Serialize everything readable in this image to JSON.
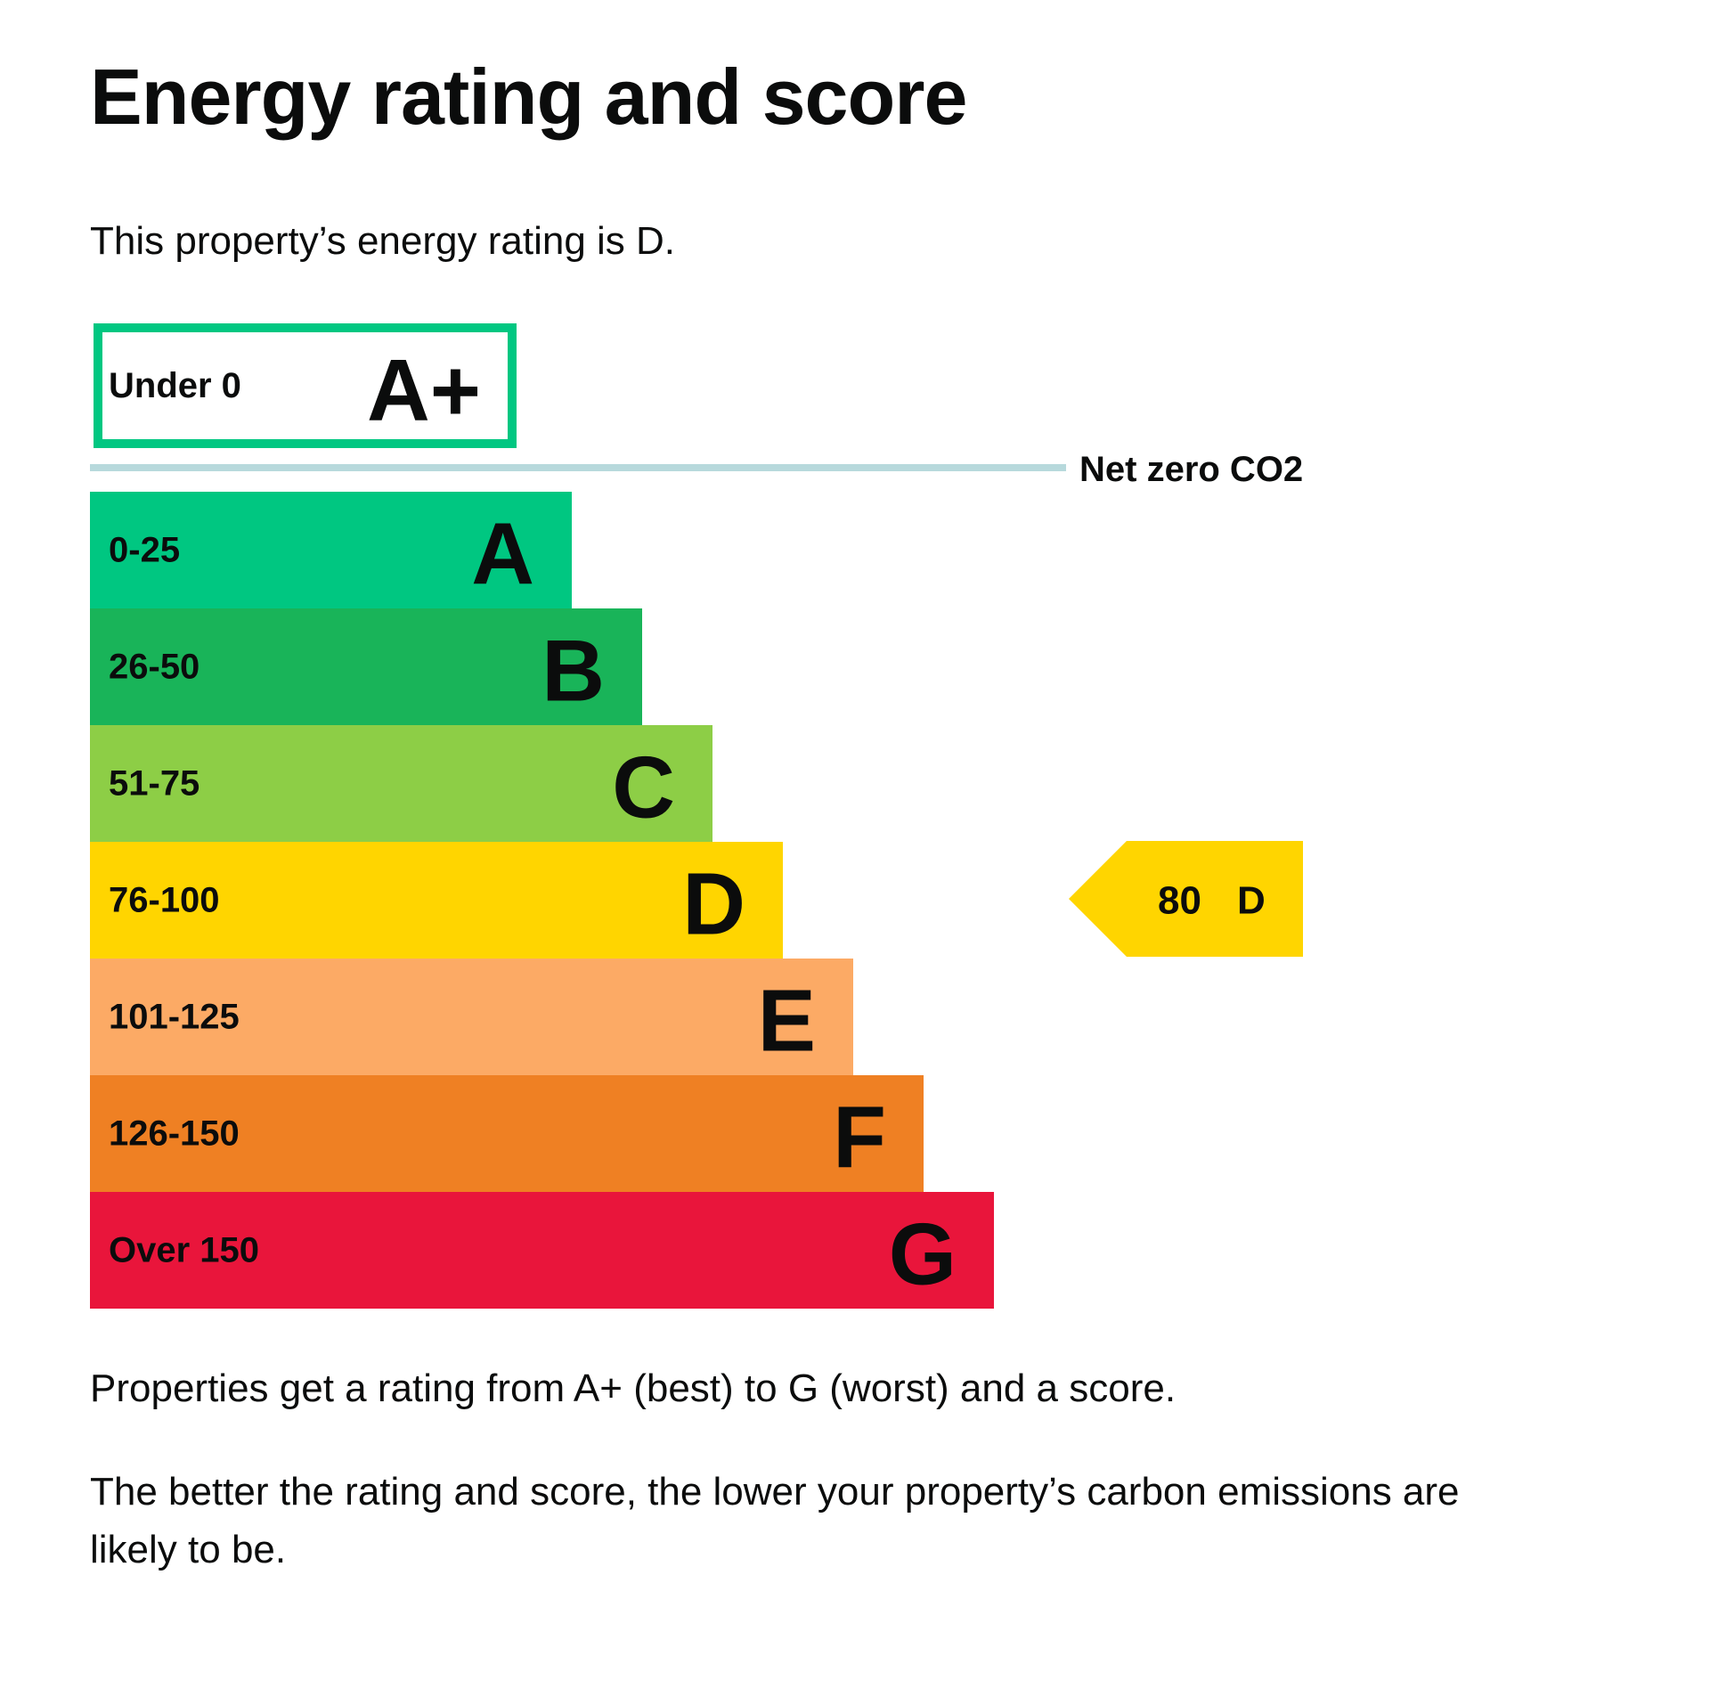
{
  "heading": "Energy rating and score",
  "intro": "This property’s energy rating is D.",
  "net_zero_label": "Net zero CO2",
  "bands": [
    {
      "range": "Under 0",
      "rating": "A+",
      "color": "#00c781"
    },
    {
      "range": "0-25",
      "rating": "A",
      "color": "#00c781"
    },
    {
      "range": "26-50",
      "rating": "B",
      "color": "#19b459"
    },
    {
      "range": "51-75",
      "rating": "C",
      "color": "#8dce46"
    },
    {
      "range": "76-100",
      "rating": "D",
      "color": "#ffd500"
    },
    {
      "range": "101-125",
      "rating": "E",
      "color": "#fcaa65"
    },
    {
      "range": "126-150",
      "rating": "F",
      "color": "#ef8023"
    },
    {
      "range": "Over 150",
      "rating": "G",
      "color": "#e9153b"
    }
  ],
  "current": {
    "score": 80,
    "rating": "D",
    "color": "#ffd500"
  },
  "paragraphs": [
    "Properties get a rating from A+ (best) to G (worst) and a score.",
    "The better the rating and score, the lower your property’s carbon emissions are likely to be."
  ]
}
